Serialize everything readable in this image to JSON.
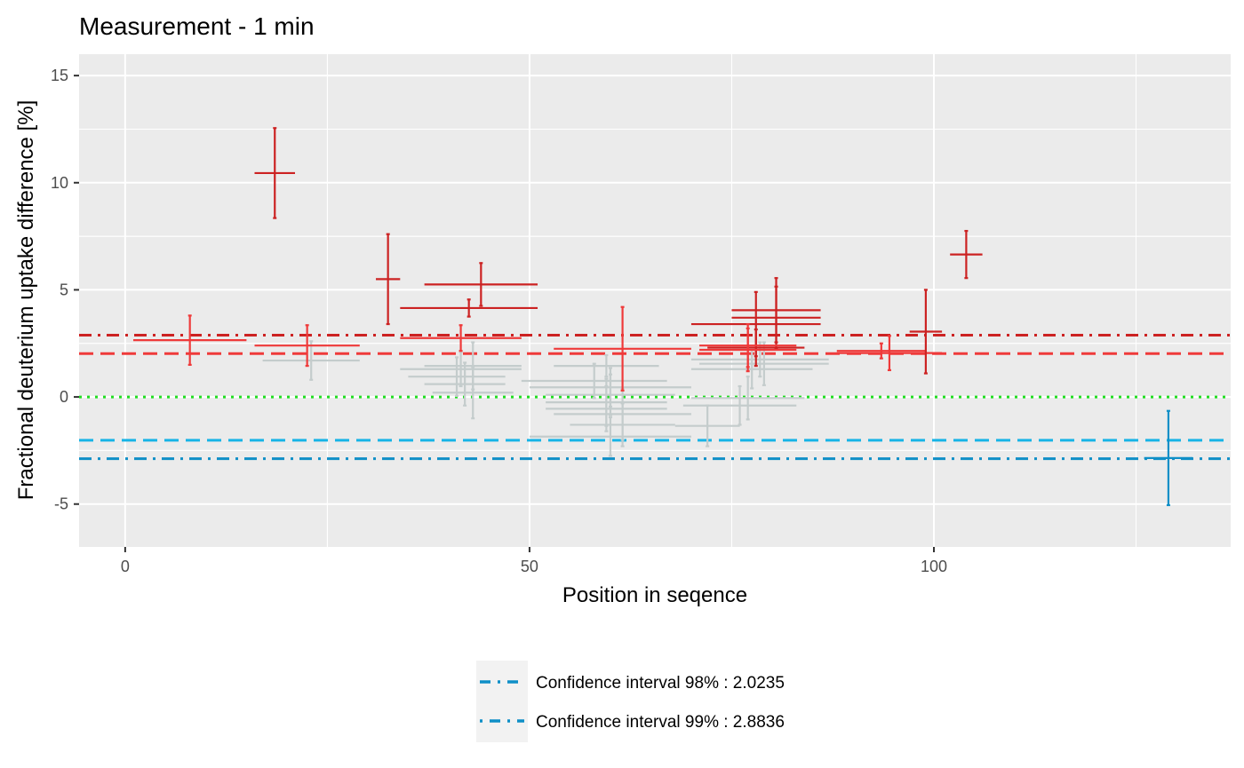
{
  "chart_data": {
    "type": "scatter",
    "title": "Measurement - 1 min",
    "xlabel": "Position in seqence",
    "ylabel": "Fractional deuterium uptake difference [%]",
    "xlim": [
      -5.7,
      136.7
    ],
    "ylim": [
      -7,
      16
    ],
    "x_ticks": [
      0,
      50,
      100
    ],
    "x_tick_labels": [
      "0",
      "50",
      "100"
    ],
    "y_ticks": [
      -5,
      0,
      5,
      10,
      15
    ],
    "y_tick_labels": [
      "-5",
      "0",
      "5",
      "10",
      "15"
    ],
    "grid": true,
    "colors": {
      "panel": "#ebebeb",
      "grid": "#ffffff",
      "protected_98": "#ef3a3a",
      "protected_99": "#cc2222",
      "deprotected_98": "#17b4e6",
      "deprotected_99": "#0f8fc7",
      "insignificant": "#c4cccc",
      "zero_line": "#22dd22"
    },
    "reference_lines": [
      {
        "y": 2.8836,
        "style": "dashdot",
        "color": "#cc2222"
      },
      {
        "y": 2.0235,
        "style": "dashed",
        "color": "#ef3a3a"
      },
      {
        "y": 0,
        "style": "dotted",
        "color": "#22dd22"
      },
      {
        "y": -2.0235,
        "style": "dashed",
        "color": "#17b4e6"
      },
      {
        "y": -2.8836,
        "style": "dashdot",
        "color": "#0f8fc7"
      }
    ],
    "points": [
      {
        "start": 1,
        "end": 15,
        "y": 2.65,
        "err": 1.15,
        "group": "protected_98"
      },
      {
        "start": 16,
        "end": 21,
        "y": 10.45,
        "err": 2.1,
        "group": "protected_99"
      },
      {
        "start": 16,
        "end": 29,
        "y": 2.4,
        "err": 0.95,
        "group": "protected_98"
      },
      {
        "start": 31,
        "end": 34,
        "y": 5.5,
        "err": 2.1,
        "group": "protected_99"
      },
      {
        "start": 34,
        "end": 51,
        "y": 4.15,
        "err": 0.4,
        "group": "protected_99"
      },
      {
        "start": 37,
        "end": 51,
        "y": 5.25,
        "err": 1.0,
        "group": "protected_99"
      },
      {
        "start": 34,
        "end": 49,
        "y": 2.75,
        "err": 0.6,
        "group": "protected_98"
      },
      {
        "start": 53,
        "end": 70,
        "y": 2.25,
        "err": 1.95,
        "group": "protected_98"
      },
      {
        "start": 72,
        "end": 84,
        "y": 2.3,
        "err": 0.85,
        "group": "protected_99"
      },
      {
        "start": 70,
        "end": 86,
        "y": 3.4,
        "err": 1.5,
        "group": "protected_99"
      },
      {
        "start": 75,
        "end": 86,
        "y": 3.7,
        "err": 1.45,
        "group": "protected_99"
      },
      {
        "start": 75,
        "end": 86,
        "y": 4.05,
        "err": 1.5,
        "group": "protected_99"
      },
      {
        "start": 71,
        "end": 83,
        "y": 2.4,
        "err": 1.0,
        "group": "protected_98"
      },
      {
        "start": 71,
        "end": 83,
        "y": 2.2,
        "err": 1.0,
        "group": "protected_98"
      },
      {
        "start": 88,
        "end": 99,
        "y": 2.15,
        "err": 0.35,
        "group": "protected_98"
      },
      {
        "start": 88,
        "end": 101,
        "y": 2.05,
        "err": 0.8,
        "group": "protected_98"
      },
      {
        "start": 97,
        "end": 101,
        "y": 3.05,
        "err": 1.95,
        "group": "protected_99"
      },
      {
        "start": 102,
        "end": 106,
        "y": 6.65,
        "err": 1.1,
        "group": "protected_99"
      },
      {
        "start": 126,
        "end": 132,
        "y": -2.85,
        "err": 2.2,
        "group": "deprotected_99"
      },
      {
        "start": 17,
        "end": 29,
        "y": 1.7,
        "err": 0.9,
        "group": "insignificant"
      },
      {
        "start": 34,
        "end": 49,
        "y": 1.3,
        "err": 0.8,
        "group": "insignificant"
      },
      {
        "start": 37,
        "end": 49,
        "y": 1.45,
        "err": 1.1,
        "group": "insignificant"
      },
      {
        "start": 35,
        "end": 47,
        "y": 0.95,
        "err": 0.9,
        "group": "insignificant"
      },
      {
        "start": 37,
        "end": 47,
        "y": 0.6,
        "err": 1.0,
        "group": "insignificant"
      },
      {
        "start": 38,
        "end": 48,
        "y": 0.2,
        "err": 1.2,
        "group": "insignificant"
      },
      {
        "start": 53,
        "end": 66,
        "y": 1.45,
        "err": 0.5,
        "group": "insignificant"
      },
      {
        "start": 49,
        "end": 67,
        "y": 0.75,
        "err": 0.8,
        "group": "insignificant"
      },
      {
        "start": 50,
        "end": 70,
        "y": 0.45,
        "err": 0.9,
        "group": "insignificant"
      },
      {
        "start": 52,
        "end": 68,
        "y": 0.1,
        "err": 0.95,
        "group": "insignificant"
      },
      {
        "start": 52,
        "end": 67,
        "y": -0.25,
        "err": 1.1,
        "group": "insignificant"
      },
      {
        "start": 52,
        "end": 67,
        "y": -0.55,
        "err": 1.05,
        "group": "insignificant"
      },
      {
        "start": 53,
        "end": 70,
        "y": -0.8,
        "err": 1.2,
        "group": "insignificant"
      },
      {
        "start": 55,
        "end": 68,
        "y": -1.3,
        "err": 1.0,
        "group": "insignificant"
      },
      {
        "start": 50,
        "end": 70,
        "y": -1.85,
        "err": 0.9,
        "group": "insignificant"
      },
      {
        "start": 70,
        "end": 87,
        "y": 1.75,
        "err": 0.8,
        "group": "insignificant"
      },
      {
        "start": 71,
        "end": 87,
        "y": 1.55,
        "err": 1.0,
        "group": "insignificant"
      },
      {
        "start": 70,
        "end": 85,
        "y": 1.3,
        "err": 0.9,
        "group": "insignificant"
      },
      {
        "start": 70,
        "end": 84,
        "y": -0.05,
        "err": 1.0,
        "group": "insignificant"
      },
      {
        "start": 69,
        "end": 83,
        "y": -0.4,
        "err": 0.9,
        "group": "insignificant"
      },
      {
        "start": 68,
        "end": 76,
        "y": -1.35,
        "err": 0.95,
        "group": "insignificant"
      }
    ],
    "legend": {
      "position": "bottom",
      "entries": [
        {
          "label": "Confidence interval 98% : 2.0235",
          "style": "dashed"
        },
        {
          "label": "Confidence interval 99% : 2.8836",
          "style": "dashdot"
        }
      ]
    }
  }
}
